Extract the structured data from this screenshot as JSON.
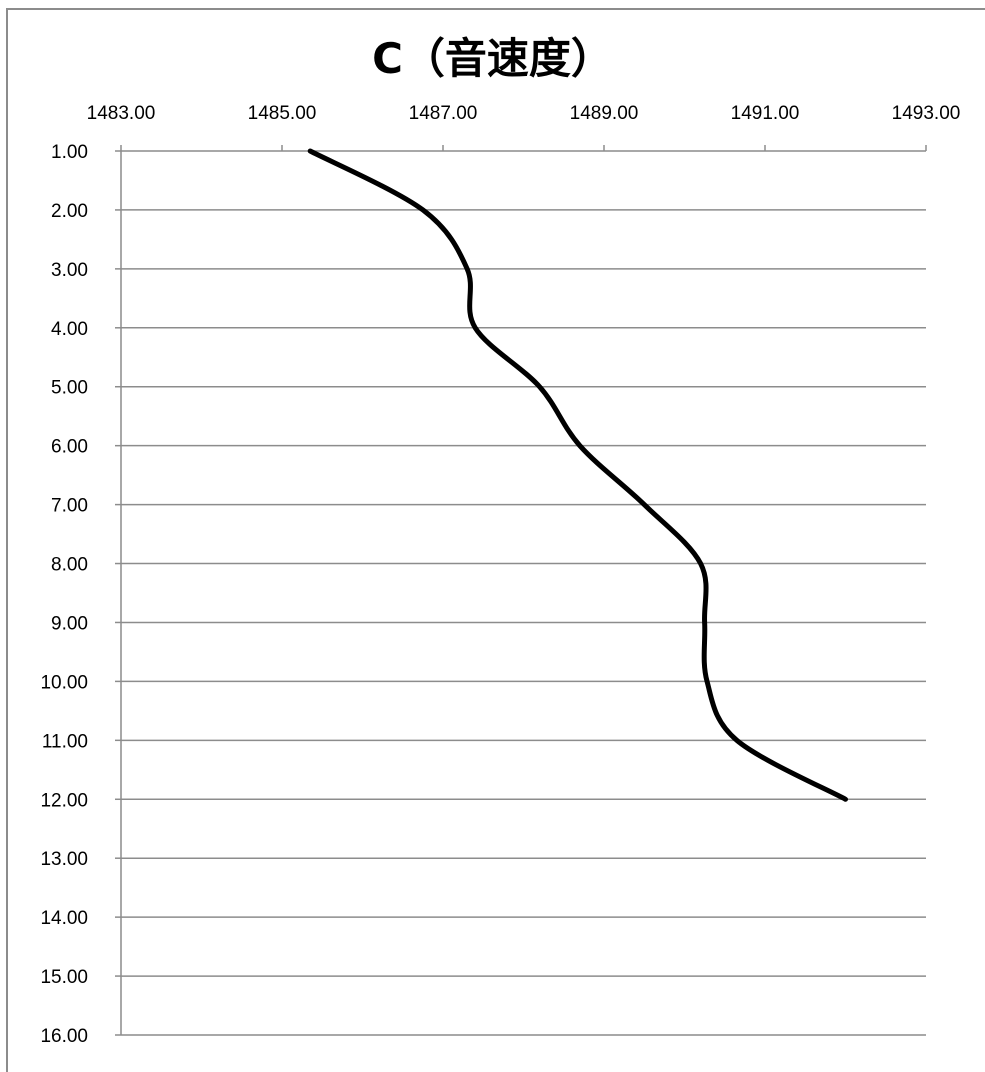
{
  "chart_data": {
    "type": "line",
    "title": "C（音速度）",
    "x_axis": {
      "position": "top",
      "range": [
        1483,
        1493
      ],
      "tick_labels": [
        "1483.00",
        "1485.00",
        "1487.00",
        "1489.00",
        "1491.00",
        "1493.00"
      ]
    },
    "y_axis": {
      "inverted": true,
      "range": [
        1,
        16
      ],
      "tick_labels": [
        "1.00",
        "2.00",
        "3.00",
        "4.00",
        "5.00",
        "6.00",
        "7.00",
        "8.00",
        "9.00",
        "10.00",
        "11.00",
        "12.00",
        "13.00",
        "14.00",
        "15.00",
        "16.00"
      ]
    },
    "grid": "horizontal",
    "legend": "none",
    "series": [
      {
        "line_color": "#000000",
        "points": [
          {
            "x": 1485.35,
            "y": 1
          },
          {
            "x": 1486.75,
            "y": 2
          },
          {
            "x": 1487.3,
            "y": 3
          },
          {
            "x": 1487.4,
            "y": 4
          },
          {
            "x": 1488.2,
            "y": 5
          },
          {
            "x": 1488.7,
            "y": 6
          },
          {
            "x": 1489.5,
            "y": 7
          },
          {
            "x": 1490.2,
            "y": 8
          },
          {
            "x": 1490.25,
            "y": 9
          },
          {
            "x": 1490.28,
            "y": 10
          },
          {
            "x": 1490.65,
            "y": 11
          },
          {
            "x": 1492.0,
            "y": 12
          }
        ]
      }
    ]
  }
}
